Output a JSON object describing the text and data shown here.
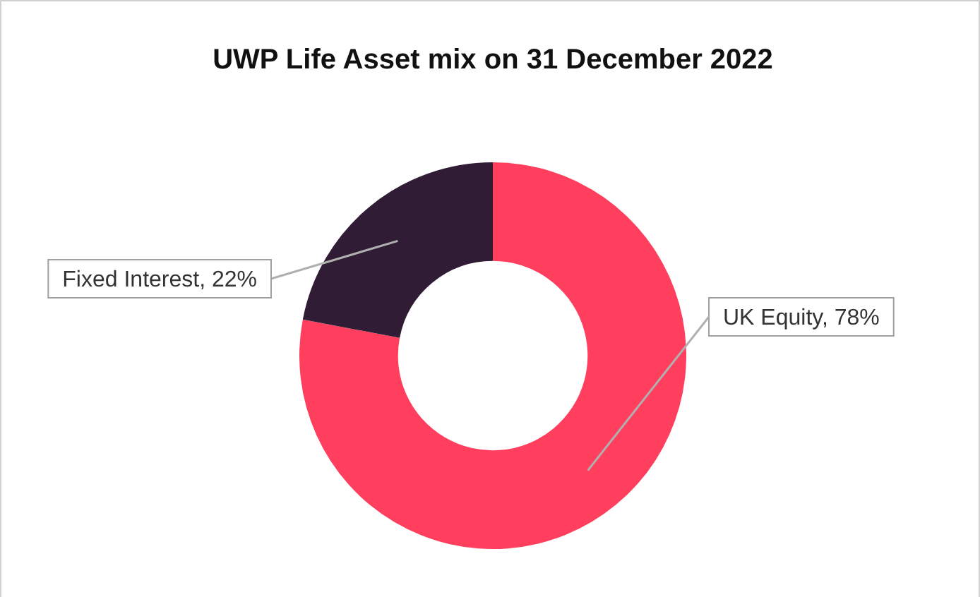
{
  "chart_data": {
    "type": "donut",
    "title": "UWP Life Asset mix on 31 December 2022",
    "categories": [
      "UK Equity",
      "Fixed Interest"
    ],
    "values": [
      78,
      22
    ],
    "colors": [
      "#ff3f5d",
      "#301d35"
    ],
    "value_labels": [
      "78%",
      "22%"
    ],
    "legend": false
  }
}
